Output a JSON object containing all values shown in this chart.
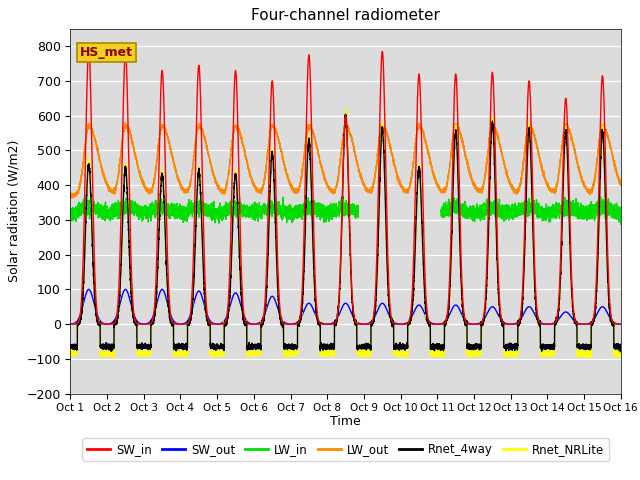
{
  "title": "Four-channel radiometer",
  "xlabel": "Time",
  "ylabel": "Solar radiation (W/m2)",
  "ylim": [
    -200,
    850
  ],
  "xlim": [
    0,
    15
  ],
  "background_color": "#dcdcdc",
  "xtick_labels": [
    "Oct 1",
    "Oct 2",
    "Oct 3",
    "Oct 4",
    "Oct 5",
    "Oct 6",
    "Oct 7",
    "Oct 8",
    "Oct 9",
    "Oct 10",
    "Oct 11",
    "Oct 12",
    "Oct 13",
    "Oct 14",
    "Oct 15",
    "Oct 16"
  ],
  "ytick_values": [
    -200,
    -100,
    0,
    100,
    200,
    300,
    400,
    500,
    600,
    700,
    800
  ],
  "annotation_text": "HS_met",
  "annotation_box_color": "#f0d020",
  "annotation_text_color": "#8b0000",
  "series": {
    "SW_in": {
      "color": "#ff0000",
      "lw": 1.0
    },
    "SW_out": {
      "color": "#0000ff",
      "lw": 1.0
    },
    "LW_in": {
      "color": "#00dd00",
      "lw": 1.0
    },
    "LW_out": {
      "color": "#ff8800",
      "lw": 1.0
    },
    "Rnet_4way": {
      "color": "#000000",
      "lw": 1.0
    },
    "Rnet_NRLite": {
      "color": "#ffff00",
      "lw": 1.0
    }
  },
  "legend_order": [
    "SW_in",
    "SW_out",
    "LW_in",
    "LW_out",
    "Rnet_4way",
    "Rnet_NRLite"
  ],
  "SW_in_peaks": [
    790,
    780,
    730,
    745,
    730,
    700,
    775,
    600,
    785,
    720,
    720,
    725,
    700,
    650,
    715
  ],
  "SW_out_peaks": [
    100,
    100,
    100,
    95,
    90,
    80,
    60,
    60,
    60,
    55,
    55,
    50,
    50,
    35,
    50
  ],
  "LW_in_base": 310,
  "LW_out_base": 370,
  "LW_out_day_peak": 200,
  "Rnet_peaks": [
    460,
    450,
    430,
    440,
    430,
    490,
    530,
    600,
    560,
    450,
    555,
    580,
    560,
    555,
    555
  ],
  "Rnet_night": -65,
  "Rnet_NRL_night": -85
}
